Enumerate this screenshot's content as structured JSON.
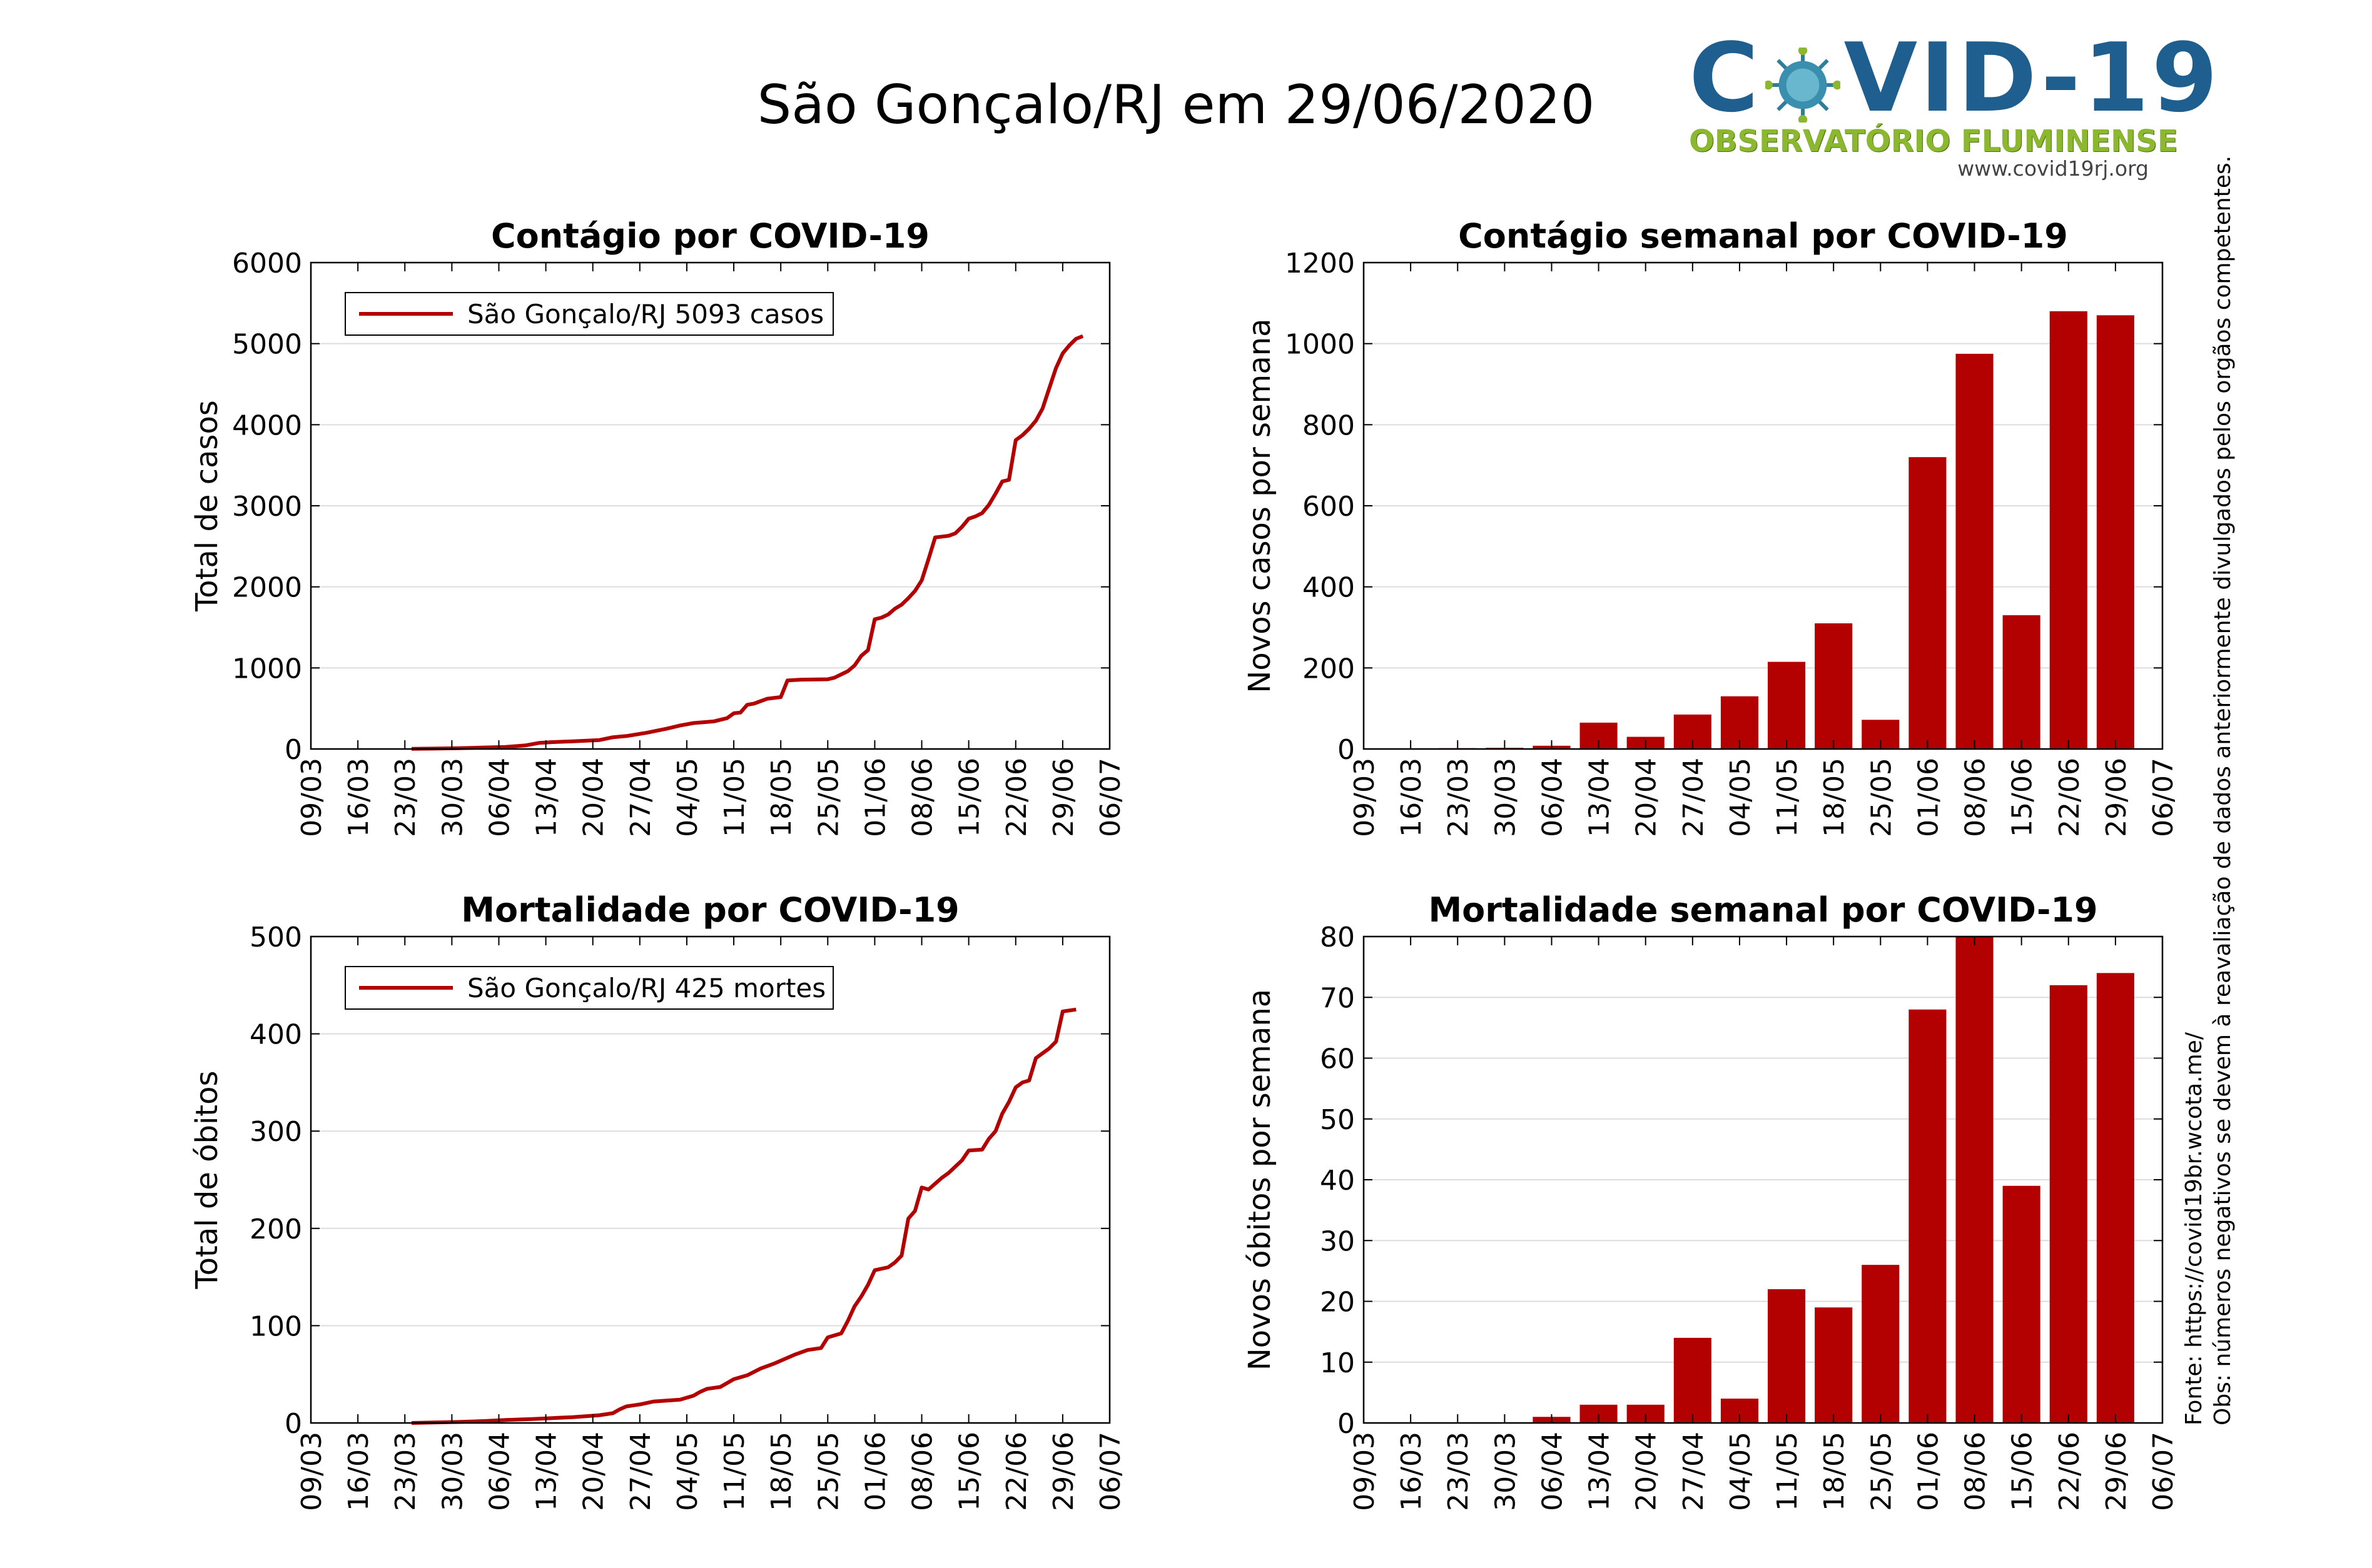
{
  "page": {
    "title": "São Gonçalo/RJ em 29/06/2020",
    "logo": {
      "brand": "COVID-19",
      "subtitle": "OBSERVATÓRIO FLUMINENSE",
      "url": "www.covid19rj.org",
      "colors": {
        "brand": "#1f5f8f",
        "subtitle": "#8bb82e",
        "virus": "#2e7d9a"
      }
    },
    "notes": {
      "source": "Fonte: https://covid19br.wcota.me/",
      "obs": "Obs: números negativos se devem à reavaliação de dados anteriormente divulgados pelos orgãos competentes."
    }
  },
  "colors": {
    "series": "#b30000",
    "bar": "#b30000",
    "grid": "#dddddd",
    "axis": "#000000"
  },
  "chart_data": [
    {
      "id": "cases-cumulative",
      "type": "line",
      "title": "Contágio por COVID-19",
      "xlabel": "",
      "ylabel": "Total de casos",
      "xticks": [
        "09/03",
        "16/03",
        "23/03",
        "30/03",
        "06/04",
        "13/04",
        "20/04",
        "27/04",
        "04/05",
        "11/05",
        "18/05",
        "25/05",
        "01/06",
        "08/06",
        "15/06",
        "22/06",
        "29/06",
        "06/07"
      ],
      "ylim": [
        0,
        6000
      ],
      "yticks": [
        0,
        1000,
        2000,
        3000,
        4000,
        5000,
        6000
      ],
      "grid": true,
      "legend": "top-left",
      "series": [
        {
          "name": "São Gonçalo/RJ  5093 casos",
          "points": [
            [
              "23/03",
              2
            ],
            [
              "26/03",
              5
            ],
            [
              "30/03",
              10
            ],
            [
              "02/04",
              16
            ],
            [
              "06/04",
              25
            ],
            [
              "09/04",
              45
            ],
            [
              "11/04",
              75
            ],
            [
              "13/04",
              85
            ],
            [
              "16/04",
              95
            ],
            [
              "20/04",
              110
            ],
            [
              "22/04",
              145
            ],
            [
              "24/04",
              160
            ],
            [
              "27/04",
              200
            ],
            [
              "30/04",
              250
            ],
            [
              "02/05",
              290
            ],
            [
              "04/05",
              320
            ],
            [
              "07/05",
              340
            ],
            [
              "09/05",
              380
            ],
            [
              "10/05",
              440
            ],
            [
              "11/05",
              450
            ],
            [
              "12/05",
              545
            ],
            [
              "13/05",
              560
            ],
            [
              "14/05",
              590
            ],
            [
              "15/05",
              620
            ],
            [
              "17/05",
              640
            ],
            [
              "18/05",
              845
            ],
            [
              "20/05",
              855
            ],
            [
              "24/05",
              860
            ],
            [
              "25/05",
              880
            ],
            [
              "27/05",
              960
            ],
            [
              "28/05",
              1030
            ],
            [
              "29/05",
              1150
            ],
            [
              "30/05",
              1220
            ],
            [
              "31/05",
              1600
            ],
            [
              "01/06",
              1620
            ],
            [
              "02/06",
              1660
            ],
            [
              "03/06",
              1730
            ],
            [
              "04/06",
              1780
            ],
            [
              "05/06",
              1860
            ],
            [
              "06/06",
              1950
            ],
            [
              "07/06",
              2080
            ],
            [
              "08/06",
              2340
            ],
            [
              "09/06",
              2610
            ],
            [
              "10/06",
              2620
            ],
            [
              "11/06",
              2630
            ],
            [
              "12/06",
              2660
            ],
            [
              "13/06",
              2740
            ],
            [
              "14/06",
              2840
            ],
            [
              "15/06",
              2870
            ],
            [
              "16/06",
              2910
            ],
            [
              "17/06",
              3010
            ],
            [
              "18/06",
              3150
            ],
            [
              "19/06",
              3300
            ],
            [
              "20/06",
              3320
            ],
            [
              "21/06",
              3810
            ],
            [
              "22/06",
              3870
            ],
            [
              "23/06",
              3950
            ],
            [
              "24/06",
              4050
            ],
            [
              "25/06",
              4200
            ],
            [
              "26/06",
              4450
            ],
            [
              "27/06",
              4700
            ],
            [
              "28/06",
              4880
            ],
            [
              "29/06",
              4980
            ],
            [
              "30/06",
              5060
            ],
            [
              "01/07",
              5093
            ]
          ]
        }
      ]
    },
    {
      "id": "cases-weekly",
      "type": "bar",
      "title": "Contágio semanal por COVID-19",
      "xlabel": "",
      "ylabel": "Novos casos por semana",
      "xticks": [
        "09/03",
        "16/03",
        "23/03",
        "30/03",
        "06/04",
        "13/04",
        "20/04",
        "27/04",
        "04/05",
        "11/05",
        "18/05",
        "25/05",
        "01/06",
        "08/06",
        "15/06",
        "22/06",
        "29/06",
        "06/07"
      ],
      "ylim": [
        0,
        1200
      ],
      "yticks": [
        0,
        200,
        400,
        600,
        800,
        1000,
        1200
      ],
      "grid": true,
      "categories": [
        "16/03",
        "23/03",
        "30/03",
        "06/04",
        "13/04",
        "20/04",
        "27/04",
        "04/05",
        "11/05",
        "18/05",
        "25/05",
        "01/06",
        "08/06",
        "15/06",
        "22/06",
        "29/06"
      ],
      "values": [
        0,
        2,
        3,
        8,
        65,
        30,
        85,
        130,
        215,
        310,
        72,
        720,
        975,
        330,
        1080,
        1070
      ]
    },
    {
      "id": "deaths-cumulative",
      "type": "line",
      "title": "Mortalidade por COVID-19",
      "xlabel": "",
      "ylabel": "Total de óbitos",
      "xticks": [
        "09/03",
        "16/03",
        "23/03",
        "30/03",
        "06/04",
        "13/04",
        "20/04",
        "27/04",
        "04/05",
        "11/05",
        "18/05",
        "25/05",
        "01/06",
        "08/06",
        "15/06",
        "22/06",
        "29/06",
        "06/07"
      ],
      "ylim": [
        0,
        500
      ],
      "yticks": [
        0,
        100,
        200,
        300,
        400,
        500
      ],
      "grid": true,
      "legend": "top-left",
      "series": [
        {
          "name": "São Gonçalo/RJ  425 mortes",
          "points": [
            [
              "23/03",
              0
            ],
            [
              "30/03",
              1
            ],
            [
              "03/04",
              2
            ],
            [
              "06/04",
              3
            ],
            [
              "10/04",
              4
            ],
            [
              "13/04",
              5
            ],
            [
              "16/04",
              6
            ],
            [
              "20/04",
              8
            ],
            [
              "22/04",
              10
            ],
            [
              "23/04",
              14
            ],
            [
              "24/04",
              17
            ],
            [
              "26/04",
              19
            ],
            [
              "28/04",
              22
            ],
            [
              "02/05",
              24
            ],
            [
              "04/05",
              28
            ],
            [
              "05/05",
              32
            ],
            [
              "06/05",
              35
            ],
            [
              "08/05",
              37
            ],
            [
              "10/05",
              45
            ],
            [
              "12/05",
              49
            ],
            [
              "14/05",
              56
            ],
            [
              "16/05",
              61
            ],
            [
              "18/05",
              67
            ],
            [
              "19/05",
              70
            ],
            [
              "21/05",
              75
            ],
            [
              "23/05",
              77
            ],
            [
              "24/05",
              88
            ],
            [
              "26/05",
              92
            ],
            [
              "27/05",
              105
            ],
            [
              "28/05",
              120
            ],
            [
              "29/05",
              130
            ],
            [
              "30/05",
              142
            ],
            [
              "31/05",
              157
            ],
            [
              "02/06",
              160
            ],
            [
              "03/06",
              165
            ],
            [
              "04/06",
              172
            ],
            [
              "05/06",
              210
            ],
            [
              "06/06",
              218
            ],
            [
              "07/06",
              242
            ],
            [
              "08/06",
              240
            ],
            [
              "10/06",
              252
            ],
            [
              "11/06",
              257
            ],
            [
              "13/06",
              270
            ],
            [
              "14/06",
              280
            ],
            [
              "16/06",
              281
            ],
            [
              "17/06",
              292
            ],
            [
              "18/06",
              300
            ],
            [
              "19/06",
              318
            ],
            [
              "20/06",
              330
            ],
            [
              "21/06",
              345
            ],
            [
              "22/06",
              350
            ],
            [
              "23/06",
              352
            ],
            [
              "24/06",
              375
            ],
            [
              "25/06",
              380
            ],
            [
              "26/06",
              385
            ],
            [
              "27/06",
              392
            ],
            [
              "28/06",
              423
            ],
            [
              "30/06",
              425
            ]
          ]
        }
      ]
    },
    {
      "id": "deaths-weekly",
      "type": "bar",
      "title": "Mortalidade semanal por COVID-19",
      "xlabel": "",
      "ylabel": "Novos óbitos por semana",
      "xticks": [
        "09/03",
        "16/03",
        "23/03",
        "30/03",
        "06/04",
        "13/04",
        "20/04",
        "27/04",
        "04/05",
        "11/05",
        "18/05",
        "25/05",
        "01/06",
        "08/06",
        "15/06",
        "22/06",
        "29/06",
        "06/07"
      ],
      "ylim": [
        0,
        80
      ],
      "yticks": [
        0,
        10,
        20,
        30,
        40,
        50,
        60,
        70,
        80
      ],
      "grid": true,
      "categories": [
        "16/03",
        "23/03",
        "30/03",
        "06/04",
        "13/04",
        "20/04",
        "27/04",
        "04/05",
        "11/05",
        "18/05",
        "25/05",
        "01/06",
        "08/06",
        "15/06",
        "22/06",
        "29/06"
      ],
      "values": [
        0,
        0,
        0,
        1,
        3,
        3,
        14,
        4,
        22,
        19,
        26,
        68,
        80,
        39,
        72,
        74
      ]
    }
  ]
}
